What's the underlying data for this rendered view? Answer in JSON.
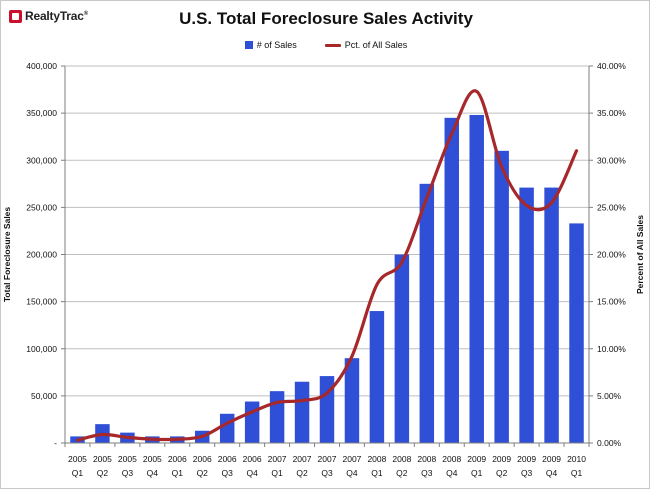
{
  "header": {
    "logo_text": "RealtyTrac",
    "logo_mark": "®",
    "title": "U.S. Total Foreclosure Sales Activity"
  },
  "colors": {
    "bar": "#2f4fd6",
    "line": "#a6282a",
    "grid": "#bfbfbf",
    "axis": "#7f7f7f"
  },
  "chart_data": {
    "type": "bar",
    "title": "U.S. Total Foreclosure Sales Activity",
    "categories": [
      [
        "2005",
        "Q1"
      ],
      [
        "2005",
        "Q2"
      ],
      [
        "2005",
        "Q3"
      ],
      [
        "2005",
        "Q4"
      ],
      [
        "2006",
        "Q1"
      ],
      [
        "2006",
        "Q2"
      ],
      [
        "2006",
        "Q3"
      ],
      [
        "2006",
        "Q4"
      ],
      [
        "2007",
        "Q1"
      ],
      [
        "2007",
        "Q2"
      ],
      [
        "2007",
        "Q3"
      ],
      [
        "2007",
        "Q4"
      ],
      [
        "2008",
        "Q1"
      ],
      [
        "2008",
        "Q2"
      ],
      [
        "2008",
        "Q3"
      ],
      [
        "2008",
        "Q4"
      ],
      [
        "2009",
        "Q1"
      ],
      [
        "2009",
        "Q2"
      ],
      [
        "2009",
        "Q3"
      ],
      [
        "2009",
        "Q4"
      ],
      [
        "2010",
        "Q1"
      ]
    ],
    "series": [
      {
        "name": "# of Sales",
        "kind": "bar",
        "axis": "left",
        "values": [
          7000,
          20000,
          11000,
          7000,
          7000,
          13000,
          31000,
          44000,
          55000,
          65000,
          71000,
          90000,
          140000,
          200000,
          275000,
          345000,
          348000,
          310000,
          271000,
          271000,
          233000
        ]
      },
      {
        "name": "Pct. of All Sales",
        "kind": "line",
        "axis": "right",
        "values": [
          0.3,
          0.9,
          0.6,
          0.4,
          0.4,
          0.7,
          2.1,
          3.3,
          4.3,
          4.5,
          5.3,
          9.2,
          16.8,
          19.2,
          26.0,
          32.8,
          37.3,
          29.3,
          25.2,
          25.5,
          31.0
        ]
      }
    ],
    "ylabel": "Total Foreclosure Sales",
    "y2label": "Percent of All Sales",
    "xlabel": "",
    "ylim": [
      0,
      400000
    ],
    "y2lim": [
      0,
      40
    ],
    "yticks": [
      "-",
      "50,000",
      "100,000",
      "150,000",
      "200,000",
      "250,000",
      "300,000",
      "350,000",
      "400,000"
    ],
    "y2ticks": [
      "0.00%",
      "5.00%",
      "10.00%",
      "15.00%",
      "20.00%",
      "25.00%",
      "30.00%",
      "35.00%",
      "40.00%"
    ],
    "legend": [
      {
        "label": "# of Sales",
        "kind": "bar"
      },
      {
        "label": "Pct. of All Sales",
        "kind": "line"
      }
    ],
    "legend_position": "top-center",
    "grid": true
  }
}
